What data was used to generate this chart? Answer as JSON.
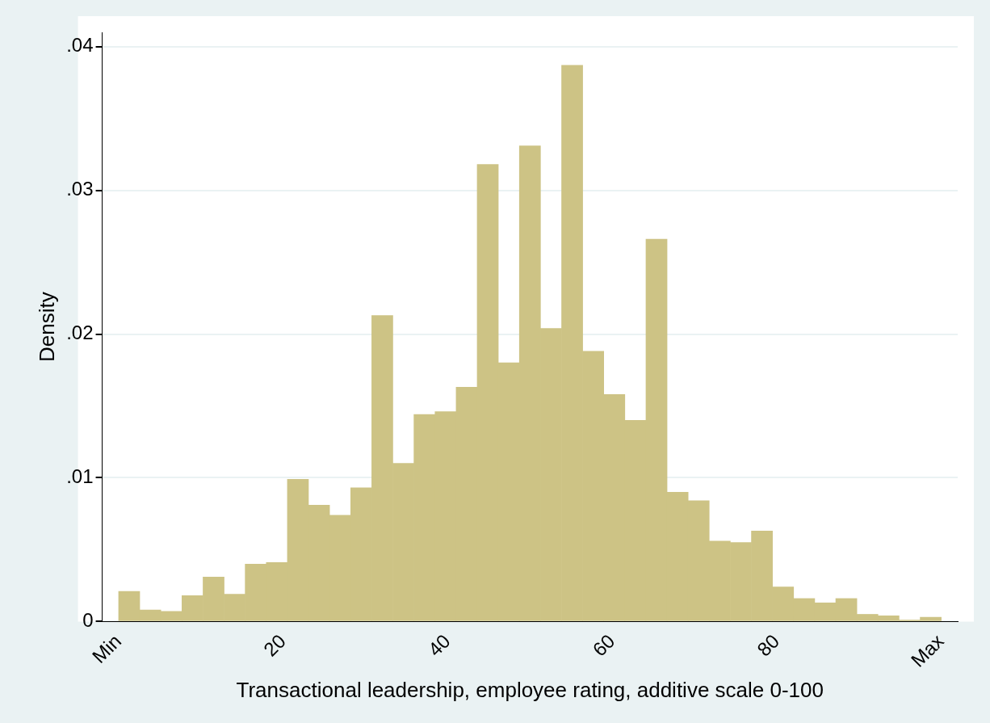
{
  "chart_data": {
    "type": "histogram",
    "xlabel": "Transactional leadership, employee rating, additive scale 0-100",
    "ylabel": "Density",
    "bins": [
      0,
      2.56,
      5.13,
      7.69,
      10.26,
      12.82,
      15.38,
      17.95,
      20.51,
      23.08,
      25.64,
      28.21,
      30.77,
      33.33,
      35.9,
      38.46,
      41.03,
      43.59,
      46.15,
      48.72,
      51.28,
      53.85,
      56.41,
      58.97,
      61.54,
      64.1,
      66.67,
      69.23,
      71.79,
      74.36,
      76.92,
      79.49,
      82.05,
      84.62,
      87.18,
      89.74,
      92.31,
      94.87,
      97.44,
      100
    ],
    "values": [
      0.0021,
      0.0008,
      0.0007,
      0.0018,
      0.0031,
      0.0019,
      0.004,
      0.0041,
      0.0099,
      0.0081,
      0.0074,
      0.0093,
      0.0213,
      0.011,
      0.0144,
      0.0146,
      0.0163,
      0.0318,
      0.018,
      0.0331,
      0.0204,
      0.0387,
      0.0188,
      0.0158,
      0.014,
      0.0266,
      0.009,
      0.0084,
      0.0056,
      0.0055,
      0.0063,
      0.0024,
      0.0016,
      0.0013,
      0.0016,
      0.0005,
      0.0004,
      0.0001,
      0.0003
    ],
    "color": "#cdc385",
    "xlim": [
      -2,
      102
    ],
    "ylim": [
      0,
      0.041
    ],
    "xticks": [
      {
        "value": 0,
        "label": "Min"
      },
      20,
      40,
      60,
      80,
      {
        "value": 100,
        "label": "Max"
      }
    ],
    "yticks": [
      0,
      {
        "value": 0.01,
        "label": ".01"
      },
      {
        "value": 0.02,
        "label": ".02"
      },
      {
        "value": 0.03,
        "label": ".03"
      },
      {
        "value": 0.04,
        "label": ".04"
      }
    ],
    "grid": "y",
    "legend": false
  }
}
